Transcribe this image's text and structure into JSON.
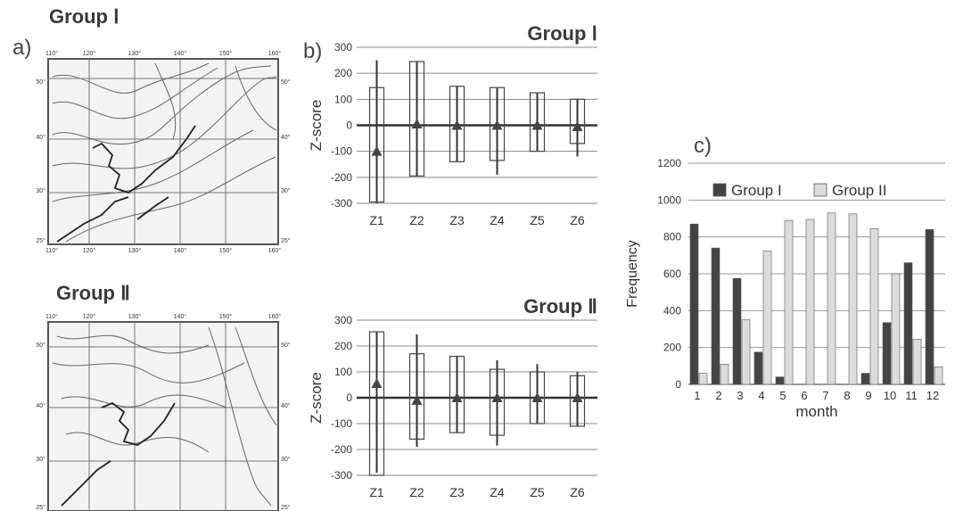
{
  "labels": {
    "a": "a)",
    "b": "b)",
    "c": "c)"
  },
  "maps": [
    {
      "title": "Group Ⅰ",
      "top_ticks": [
        "110°",
        "120°",
        "130°",
        "140°",
        "150°",
        "160°"
      ],
      "bottom_ticks": [
        "110°",
        "120°",
        "130°",
        "140°",
        "150°",
        "160°"
      ],
      "left_ticks": [
        "50°",
        "40°",
        "30°",
        "25°"
      ],
      "right_ticks": [
        "50°",
        "40°",
        "30°",
        "25°"
      ]
    },
    {
      "title": "Group Ⅱ",
      "top_ticks": [
        "110°",
        "120°",
        "130°",
        "140°",
        "150°",
        "160°"
      ],
      "bottom_ticks": [],
      "left_ticks": [
        "50°",
        "40°",
        "30°",
        "25°"
      ],
      "right_ticks": [
        "50°",
        "40°",
        "30°",
        "25°"
      ]
    }
  ],
  "chart_data": [
    {
      "type": "box",
      "title": "Group Ⅰ",
      "ylabel": "Z-score",
      "ylim": [
        -300,
        300
      ],
      "yticks": [
        300,
        200,
        100,
        0,
        -100,
        -200,
        -300
      ],
      "categories": [
        "Z1",
        "Z2",
        "Z3",
        "Z4",
        "Z5",
        "Z6"
      ],
      "mean": [
        -100,
        5,
        0,
        0,
        0,
        -5
      ],
      "box_upper": [
        145,
        245,
        150,
        145,
        125,
        100
      ],
      "box_lower": [
        -295,
        -195,
        -140,
        -135,
        -100,
        -70
      ],
      "whisker_upper": [
        250,
        245,
        150,
        145,
        125,
        100
      ],
      "whisker_lower": [
        -300,
        -195,
        -140,
        -190,
        -100,
        -120
      ]
    },
    {
      "type": "box",
      "title": "Group Ⅱ",
      "ylabel": "Z-score",
      "ylim": [
        -300,
        300
      ],
      "yticks": [
        300,
        200,
        100,
        0,
        -100,
        -200,
        -300
      ],
      "categories": [
        "Z1",
        "Z2",
        "Z3",
        "Z4",
        "Z5",
        "Z6"
      ],
      "mean": [
        55,
        -10,
        0,
        0,
        0,
        0
      ],
      "box_upper": [
        255,
        170,
        160,
        110,
        100,
        85
      ],
      "box_lower": [
        -300,
        -160,
        -135,
        -145,
        -100,
        -110
      ],
      "whisker_upper": [
        255,
        245,
        160,
        145,
        130,
        100
      ],
      "whisker_lower": [
        -290,
        -190,
        -135,
        -185,
        -100,
        -110
      ]
    },
    {
      "type": "bar",
      "title": "",
      "xlabel": "month",
      "ylabel": "Frequency",
      "ylim": [
        0,
        1200
      ],
      "yticks": [
        1200,
        1000,
        800,
        600,
        400,
        200,
        0
      ],
      "categories": [
        "1",
        "2",
        "3",
        "4",
        "5",
        "6",
        "7",
        "8",
        "9",
        "10",
        "11",
        "12"
      ],
      "legend_position": "top",
      "series": [
        {
          "name": "Group I",
          "color": "#444444",
          "values": [
            870,
            740,
            575,
            175,
            40,
            0,
            0,
            0,
            60,
            335,
            660,
            840
          ]
        },
        {
          "name": "Group II",
          "color": "#dcdcdc",
          "values": [
            60,
            110,
            350,
            725,
            890,
            895,
            930,
            925,
            845,
            600,
            245,
            95
          ]
        }
      ]
    }
  ]
}
